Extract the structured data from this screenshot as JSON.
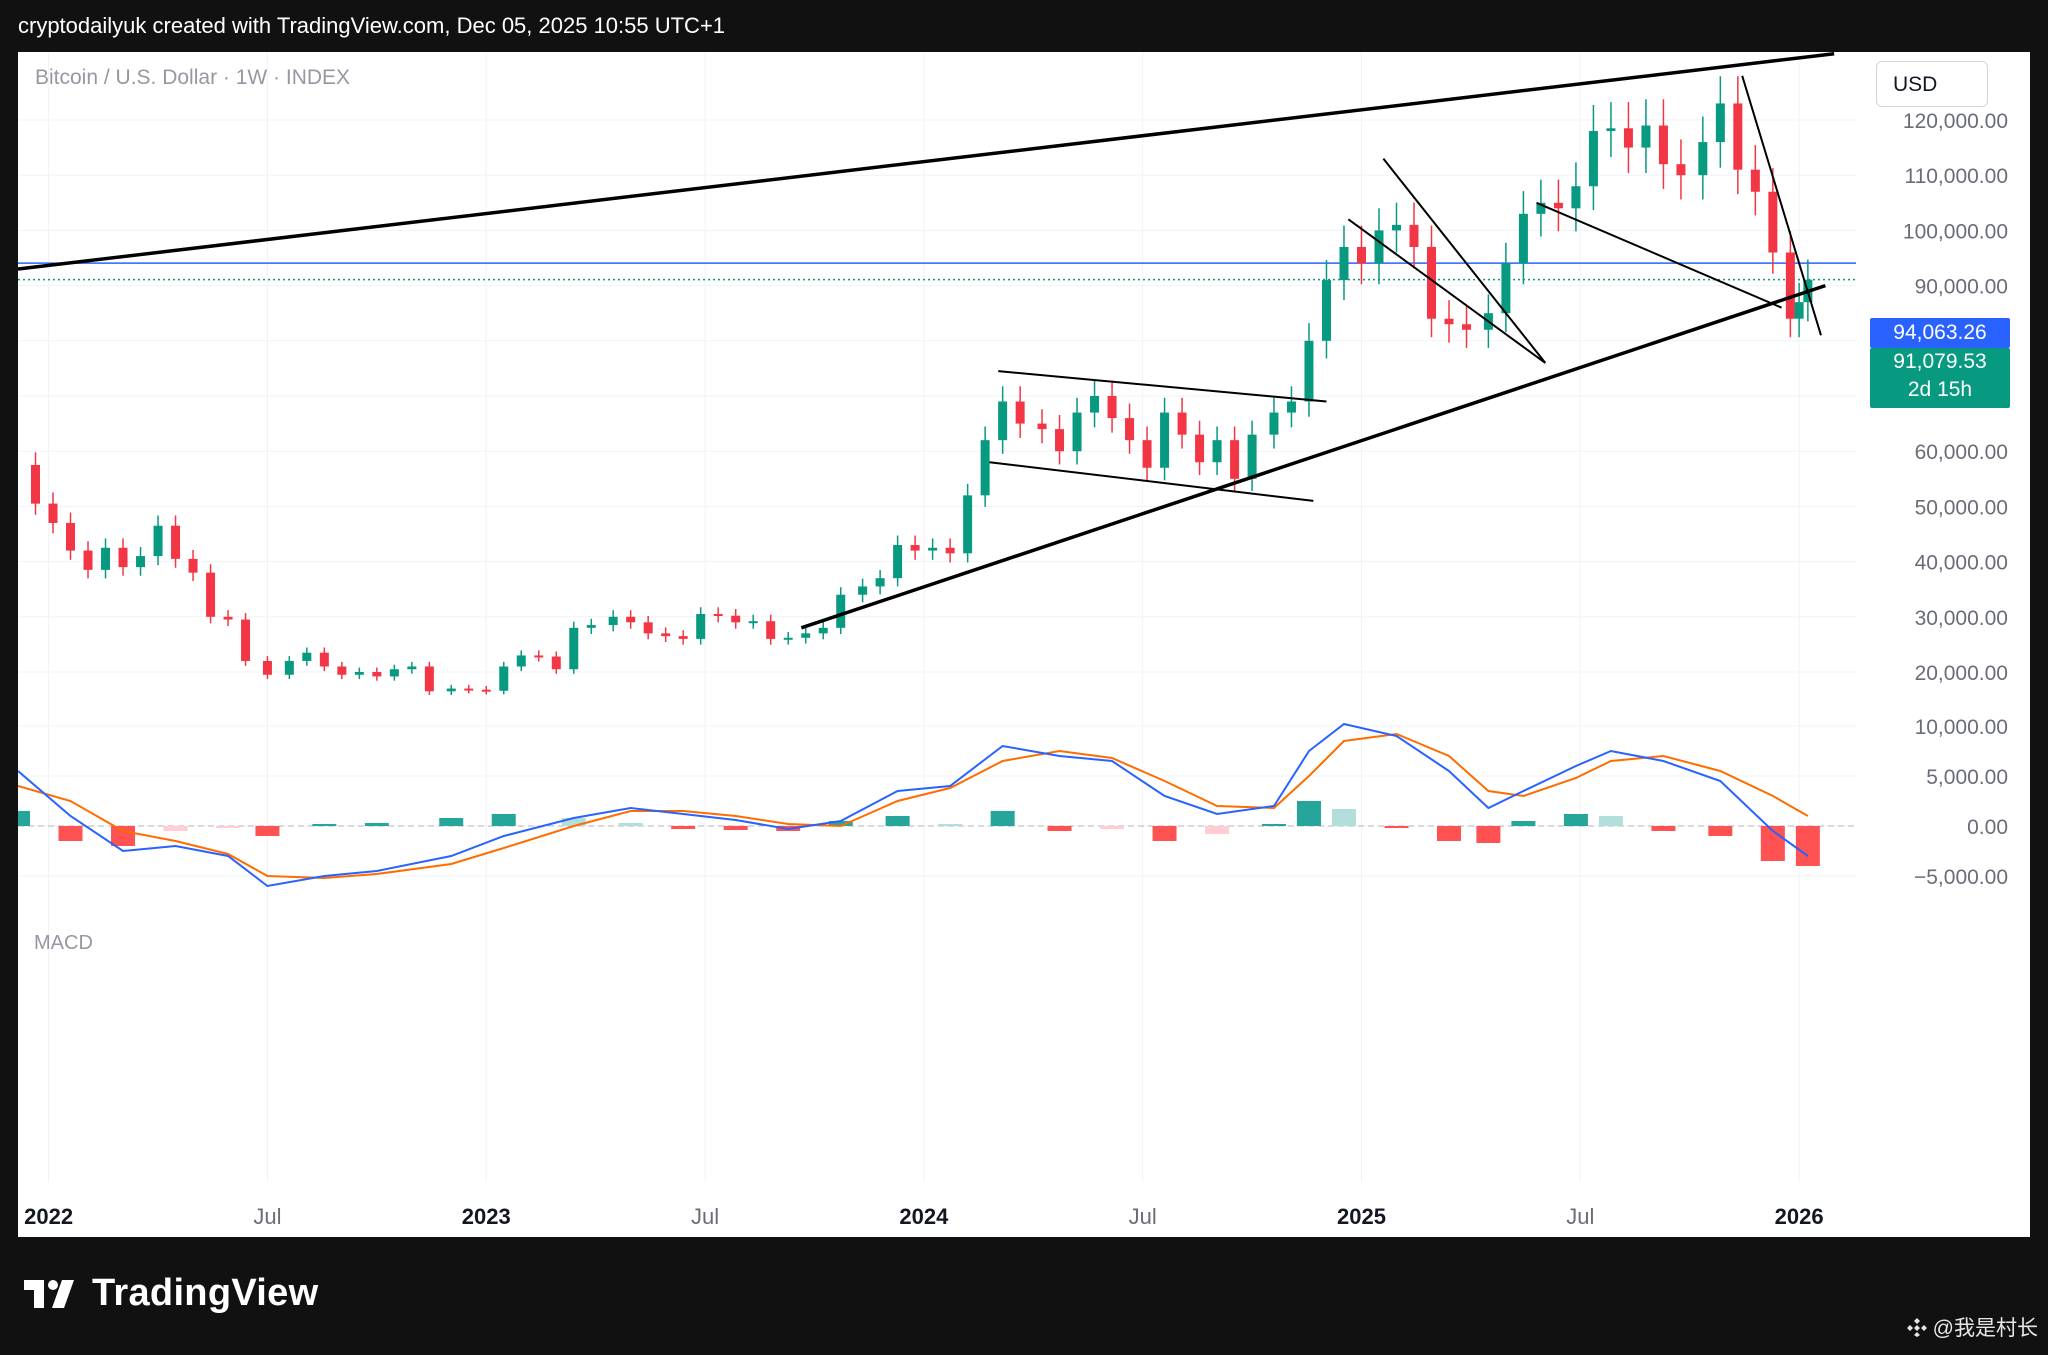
{
  "header": {
    "credit": "cryptodailyuk created with TradingView.com, Dec 05, 2025 10:55 UTC+1"
  },
  "chart": {
    "symbol_label": "Bitcoin / U.S. Dollar · 1W · INDEX",
    "currency_button": "USD",
    "price_tag_blue": "94,063.26",
    "price_tag_green": "91,079.53",
    "countdown": "2d 15h",
    "macd_label": "MACD",
    "colors": {
      "up": "#089981",
      "down": "#f23645",
      "macd": "#2962ff",
      "signal": "#ff6d00",
      "line": "#000000"
    }
  },
  "footer": {
    "brand": "TradingView",
    "watermark": "@我是村长"
  },
  "chart_data": {
    "type": "candlestick",
    "title": "Bitcoin / U.S. Dollar · 1W · INDEX",
    "price_axis": {
      "ticks": [
        120000,
        110000,
        100000,
        90000,
        80000,
        70000,
        60000,
        50000,
        40000,
        30000,
        20000
      ],
      "labels": [
        "120,000.00",
        "110,000.00",
        "100,000.00",
        "90,000.00",
        "80,000.00",
        "70,000.00",
        "60,000.00",
        "50,000.00",
        "40,000.00",
        "30,000.00",
        "20,000.00"
      ],
      "range": [
        13000,
        133000
      ]
    },
    "time_axis": {
      "labels": [
        "2022",
        "Jul",
        "2023",
        "Jul",
        "2024",
        "Jul",
        "2025",
        "Jul",
        "2026"
      ],
      "values": [
        2022.0,
        2022.5,
        2023.0,
        2023.5,
        2024.0,
        2024.5,
        2025.0,
        2025.5,
        2026.0
      ],
      "range": [
        2021.93,
        2026.13
      ]
    },
    "close_series": [
      [
        2021.93,
        57500
      ],
      [
        2021.97,
        50500
      ],
      [
        2022.01,
        47000
      ],
      [
        2022.05,
        42000
      ],
      [
        2022.09,
        38500
      ],
      [
        2022.13,
        42500
      ],
      [
        2022.17,
        39000
      ],
      [
        2022.21,
        41000
      ],
      [
        2022.25,
        46500
      ],
      [
        2022.29,
        40500
      ],
      [
        2022.33,
        38000
      ],
      [
        2022.37,
        30000
      ],
      [
        2022.41,
        29500
      ],
      [
        2022.45,
        22000
      ],
      [
        2022.5,
        19500
      ],
      [
        2022.55,
        22000
      ],
      [
        2022.59,
        23500
      ],
      [
        2022.63,
        21000
      ],
      [
        2022.67,
        19500
      ],
      [
        2022.71,
        20000
      ],
      [
        2022.75,
        19200
      ],
      [
        2022.79,
        20500
      ],
      [
        2022.83,
        21000
      ],
      [
        2022.87,
        16500
      ],
      [
        2022.92,
        17000
      ],
      [
        2022.96,
        16800
      ],
      [
        2023.0,
        16600
      ],
      [
        2023.04,
        21000
      ],
      [
        2023.08,
        23000
      ],
      [
        2023.12,
        22800
      ],
      [
        2023.16,
        20500
      ],
      [
        2023.2,
        28000
      ],
      [
        2023.24,
        28500
      ],
      [
        2023.29,
        30000
      ],
      [
        2023.33,
        29000
      ],
      [
        2023.37,
        27000
      ],
      [
        2023.41,
        26500
      ],
      [
        2023.45,
        26000
      ],
      [
        2023.49,
        30500
      ],
      [
        2023.53,
        30200
      ],
      [
        2023.57,
        29000
      ],
      [
        2023.61,
        29200
      ],
      [
        2023.65,
        26000
      ],
      [
        2023.69,
        26200
      ],
      [
        2023.73,
        27000
      ],
      [
        2023.77,
        28000
      ],
      [
        2023.81,
        34000
      ],
      [
        2023.86,
        35500
      ],
      [
        2023.9,
        37000
      ],
      [
        2023.94,
        43000
      ],
      [
        2023.98,
        42000
      ],
      [
        2024.02,
        42500
      ],
      [
        2024.06,
        41500
      ],
      [
        2024.1,
        52000
      ],
      [
        2024.14,
        62000
      ],
      [
        2024.18,
        69000
      ],
      [
        2024.22,
        65000
      ],
      [
        2024.27,
        64000
      ],
      [
        2024.31,
        60000
      ],
      [
        2024.35,
        67000
      ],
      [
        2024.39,
        70000
      ],
      [
        2024.43,
        66000
      ],
      [
        2024.47,
        62000
      ],
      [
        2024.51,
        57000
      ],
      [
        2024.55,
        67000
      ],
      [
        2024.59,
        63000
      ],
      [
        2024.63,
        58000
      ],
      [
        2024.67,
        62000
      ],
      [
        2024.71,
        55000
      ],
      [
        2024.75,
        63000
      ],
      [
        2024.8,
        67000
      ],
      [
        2024.84,
        69000
      ],
      [
        2024.88,
        80000
      ],
      [
        2024.92,
        91000
      ],
      [
        2024.96,
        97000
      ],
      [
        2025.0,
        94000
      ],
      [
        2025.04,
        100000
      ],
      [
        2025.08,
        101000
      ],
      [
        2025.12,
        97000
      ],
      [
        2025.16,
        84000
      ],
      [
        2025.2,
        83000
      ],
      [
        2025.24,
        82000
      ],
      [
        2025.29,
        85000
      ],
      [
        2025.33,
        94000
      ],
      [
        2025.37,
        103000
      ],
      [
        2025.41,
        105000
      ],
      [
        2025.45,
        104000
      ],
      [
        2025.49,
        108000
      ],
      [
        2025.53,
        118000
      ],
      [
        2025.57,
        118500
      ],
      [
        2025.61,
        115000
      ],
      [
        2025.65,
        119000
      ],
      [
        2025.69,
        112000
      ],
      [
        2025.73,
        110000
      ],
      [
        2025.78,
        116000
      ],
      [
        2025.82,
        123000
      ],
      [
        2025.86,
        111000
      ],
      [
        2025.9,
        107000
      ],
      [
        2025.94,
        96000
      ],
      [
        2025.98,
        84000
      ],
      [
        2026.0,
        87000
      ],
      [
        2026.02,
        91080
      ]
    ],
    "horizontal_levels": [
      94063.26,
      91079.53
    ],
    "macd": {
      "axis_labels": [
        "10,000.00",
        "5,000.00",
        "0.00",
        "−5,000.00"
      ],
      "axis_values": [
        10000,
        5000,
        0,
        -5000
      ],
      "macd_line": [
        [
          2021.93,
          5500
        ],
        [
          2022.05,
          1000
        ],
        [
          2022.17,
          -2500
        ],
        [
          2022.29,
          -2000
        ],
        [
          2022.41,
          -3000
        ],
        [
          2022.5,
          -6000
        ],
        [
          2022.63,
          -5000
        ],
        [
          2022.75,
          -4500
        ],
        [
          2022.92,
          -3000
        ],
        [
          2023.04,
          -1000
        ],
        [
          2023.2,
          800
        ],
        [
          2023.33,
          1800
        ],
        [
          2023.45,
          1200
        ],
        [
          2023.57,
          600
        ],
        [
          2023.69,
          -300
        ],
        [
          2023.81,
          500
        ],
        [
          2023.94,
          3500
        ],
        [
          2024.06,
          4000
        ],
        [
          2024.18,
          8000
        ],
        [
          2024.31,
          7000
        ],
        [
          2024.43,
          6500
        ],
        [
          2024.55,
          3000
        ],
        [
          2024.67,
          1200
        ],
        [
          2024.8,
          2000
        ],
        [
          2024.88,
          7500
        ],
        [
          2024.96,
          10200
        ],
        [
          2025.08,
          9000
        ],
        [
          2025.2,
          5500
        ],
        [
          2025.29,
          1800
        ],
        [
          2025.37,
          3500
        ],
        [
          2025.49,
          6000
        ],
        [
          2025.57,
          7500
        ],
        [
          2025.69,
          6500
        ],
        [
          2025.82,
          4500
        ],
        [
          2025.94,
          -500
        ],
        [
          2026.02,
          -3000
        ]
      ],
      "signal_line": [
        [
          2021.93,
          4000
        ],
        [
          2022.05,
          2500
        ],
        [
          2022.17,
          -500
        ],
        [
          2022.29,
          -1500
        ],
        [
          2022.41,
          -2800
        ],
        [
          2022.5,
          -5000
        ],
        [
          2022.63,
          -5200
        ],
        [
          2022.75,
          -4800
        ],
        [
          2022.92,
          -3800
        ],
        [
          2023.04,
          -2200
        ],
        [
          2023.2,
          0
        ],
        [
          2023.33,
          1500
        ],
        [
          2023.45,
          1500
        ],
        [
          2023.57,
          1000
        ],
        [
          2023.69,
          200
        ],
        [
          2023.81,
          0
        ],
        [
          2023.94,
          2500
        ],
        [
          2024.06,
          3800
        ],
        [
          2024.18,
          6500
        ],
        [
          2024.31,
          7500
        ],
        [
          2024.43,
          6800
        ],
        [
          2024.55,
          4500
        ],
        [
          2024.67,
          2000
        ],
        [
          2024.8,
          1800
        ],
        [
          2024.88,
          5000
        ],
        [
          2024.96,
          8500
        ],
        [
          2025.08,
          9200
        ],
        [
          2025.2,
          7000
        ],
        [
          2025.29,
          3500
        ],
        [
          2025.37,
          3000
        ],
        [
          2025.49,
          4800
        ],
        [
          2025.57,
          6500
        ],
        [
          2025.69,
          7000
        ],
        [
          2025.82,
          5500
        ],
        [
          2025.94,
          3000
        ],
        [
          2026.02,
          1000
        ]
      ]
    }
  }
}
